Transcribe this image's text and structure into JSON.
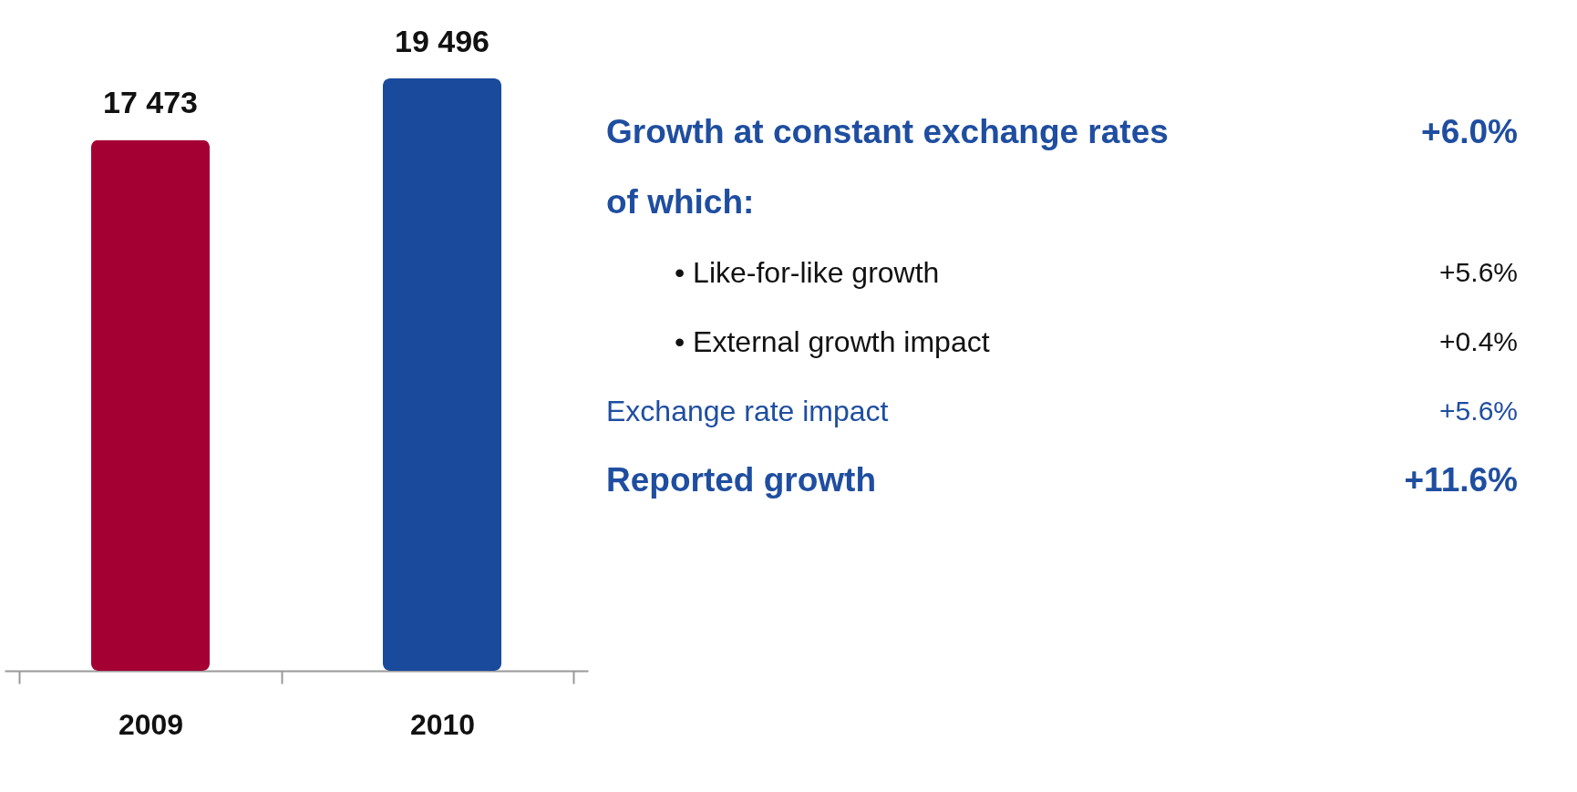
{
  "chart_data": [
    {
      "type": "bar",
      "categories": [
        "2009",
        "2010"
      ],
      "values": [
        17473,
        19496
      ],
      "colors": [
        "#a50034",
        "#1a4a9c"
      ],
      "value_labels": [
        "17 473",
        "19 496"
      ]
    },
    {
      "type": "other",
      "annotations": [
        "Growth at constant exchange rates",
        "+6.0%",
        "of which:",
        "• Like-for-like growth",
        "+5.6%",
        "• External growth impact",
        "+0.4%",
        "Exchange rate impact",
        "+5.6%",
        "Reported growth",
        "+11.6%"
      ]
    }
  ]
}
